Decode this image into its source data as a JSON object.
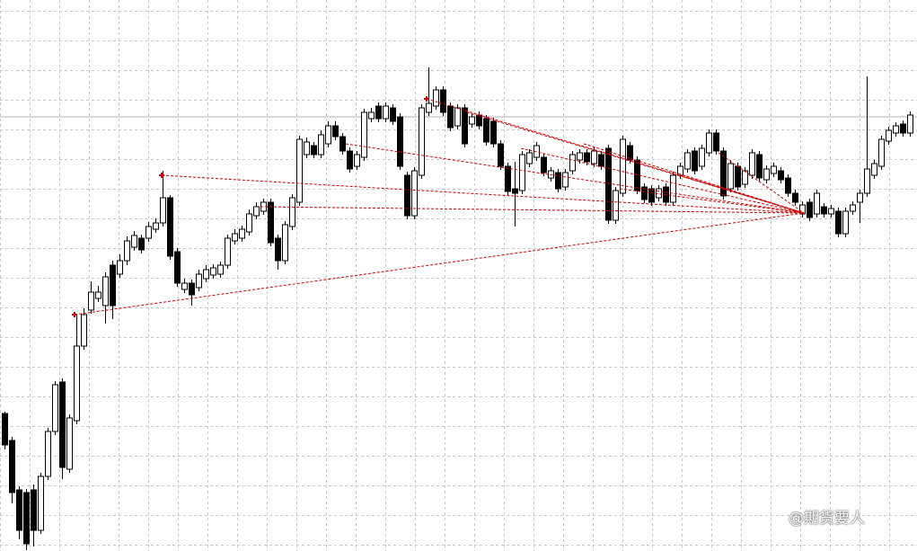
{
  "chart_data": {
    "type": "candlestick",
    "ylim": [
      0,
      613
    ],
    "grid": true,
    "up_color": "#ffffff",
    "down_color": "#000000",
    "wick_color": "#000000",
    "open": [
      153,
      123,
      68,
      65,
      68,
      23,
      83,
      133,
      188,
      91,
      145,
      228,
      268,
      281,
      273,
      318,
      308,
      323,
      338,
      348,
      348,
      358,
      365,
      393,
      333,
      291,
      298,
      293,
      303,
      307,
      308,
      318,
      345,
      348,
      355,
      373,
      378,
      388,
      348,
      323,
      361,
      388,
      441,
      451,
      441,
      453,
      473,
      461,
      445,
      428,
      438,
      481,
      495,
      481,
      493,
      483,
      418,
      373,
      418,
      488,
      495,
      513,
      495,
      473,
      493,
      475,
      485,
      481,
      478,
      453,
      428,
      403,
      401,
      431,
      438,
      438,
      415,
      421,
      405,
      423,
      435,
      443,
      431,
      441,
      448,
      368,
      398,
      451,
      435,
      405,
      403,
      393,
      405,
      388,
      418,
      425,
      445,
      428,
      443,
      465,
      445,
      403,
      428,
      408,
      418,
      441,
      413,
      420,
      423,
      415,
      398,
      375,
      388,
      375,
      383,
      375,
      378,
      353,
      378,
      388,
      398,
      418,
      428,
      456,
      465,
      475,
      465
    ],
    "high": [
      155,
      127,
      72,
      69,
      74,
      87,
      137,
      189,
      192,
      152,
      263,
      270,
      300,
      295,
      310,
      323,
      330,
      350,
      356,
      352,
      366,
      370,
      423,
      396,
      337,
      303,
      302,
      313,
      318,
      319,
      322,
      352,
      358,
      362,
      380,
      388,
      392,
      392,
      352,
      367,
      397,
      462,
      460,
      455,
      468,
      478,
      478,
      465,
      449,
      445,
      492,
      493,
      499,
      499,
      497,
      487,
      422,
      427,
      497,
      538,
      517,
      517,
      499,
      497,
      497,
      487,
      489,
      485,
      482,
      457,
      432,
      433,
      445,
      447,
      455,
      442,
      427,
      425,
      425,
      445,
      447,
      447,
      449,
      445,
      452,
      405,
      462,
      455,
      439,
      409,
      407,
      407,
      409,
      422,
      432,
      447,
      449,
      452,
      469,
      469,
      449,
      435,
      432,
      427,
      447,
      445,
      429,
      432,
      427,
      419,
      402,
      389,
      392,
      402,
      387,
      385,
      382,
      382,
      389,
      402,
      528,
      435,
      462,
      472,
      477,
      479,
      489
    ],
    "low": [
      113,
      53,
      13,
      1,
      5,
      19,
      79,
      129,
      80,
      87,
      141,
      224,
      264,
      277,
      253,
      258,
      304,
      318,
      334,
      331,
      344,
      354,
      361,
      324,
      294,
      287,
      273,
      289,
      299,
      303,
      304,
      314,
      341,
      344,
      351,
      369,
      374,
      339,
      313,
      319,
      357,
      384,
      437,
      437,
      437,
      449,
      457,
      441,
      421,
      424,
      434,
      477,
      477,
      477,
      474,
      424,
      369,
      369,
      414,
      484,
      491,
      484,
      467,
      469,
      449,
      471,
      469,
      451,
      449,
      424,
      396,
      361,
      397,
      427,
      434,
      417,
      411,
      399,
      401,
      419,
      431,
      429,
      427,
      424,
      364,
      364,
      394,
      431,
      397,
      387,
      384,
      389,
      384,
      384,
      414,
      421,
      419,
      424,
      439,
      441,
      391,
      399,
      401,
      404,
      414,
      411,
      409,
      416,
      409,
      394,
      384,
      371,
      367,
      371,
      371,
      371,
      349,
      349,
      374,
      365,
      394,
      414,
      424,
      452,
      461,
      461,
      461
    ],
    "close": [
      118,
      65,
      23,
      8,
      23,
      83,
      133,
      185,
      93,
      148,
      228,
      263,
      288,
      288,
      305,
      273,
      323,
      345,
      351,
      335,
      361,
      365,
      393,
      328,
      298,
      298,
      285,
      308,
      313,
      315,
      318,
      348,
      353,
      358,
      375,
      383,
      388,
      343,
      323,
      363,
      393,
      458,
      455,
      441,
      463,
      473,
      461,
      445,
      425,
      441,
      488,
      488,
      481,
      495,
      478,
      428,
      373,
      423,
      493,
      498,
      513,
      488,
      471,
      493,
      453,
      483,
      473,
      455,
      453,
      428,
      400,
      398,
      441,
      443,
      451,
      421,
      423,
      403,
      421,
      441,
      443,
      433,
      445,
      428,
      368,
      401,
      458,
      435,
      401,
      391,
      388,
      403,
      388,
      418,
      428,
      443,
      423,
      448,
      465,
      445,
      395,
      431,
      405,
      423,
      443,
      415,
      425,
      428,
      413,
      398,
      388,
      385,
      371,
      398,
      375,
      381,
      353,
      378,
      385,
      398,
      425,
      431,
      458,
      468,
      473,
      465,
      485
    ],
    "price_line": 483,
    "trendline_color": "#cc0000",
    "trendlines": [
      {
        "x": [
          9.75,
          111.25
        ],
        "y": [
          263,
          376
        ]
      },
      {
        "x": [
          21.875,
          111.25
        ],
        "y": [
          418,
          376
        ]
      },
      {
        "x": [
          35.625,
          111.25
        ],
        "y": [
          383,
          376
        ]
      },
      {
        "x": [
          47.5,
          111.25
        ],
        "y": [
          453,
          376
        ]
      },
      {
        "x": [
          58.75,
          111.25
        ],
        "y": [
          503,
          376
        ]
      },
      {
        "x": [
          64.375,
          111.25
        ],
        "y": [
          488,
          376
        ]
      },
      {
        "x": [
          71.875,
          111.25
        ],
        "y": [
          448,
          376
        ]
      },
      {
        "x": [
          80.625,
          111.25
        ],
        "y": [
          453,
          376
        ]
      },
      {
        "x": [
          85.625,
          111.25
        ],
        "y": [
          403,
          376
        ]
      },
      {
        "x": [
          94.375,
          111.25
        ],
        "y": [
          418,
          376
        ]
      },
      {
        "x": [
          99.375,
          111.25
        ],
        "y": [
          443,
          376
        ]
      }
    ],
    "markers": [
      {
        "x": 9.75,
        "y": 263
      },
      {
        "x": 21.875,
        "y": 418
      },
      {
        "x": 58.75,
        "y": 503
      }
    ]
  },
  "watermark": "@期货要人"
}
